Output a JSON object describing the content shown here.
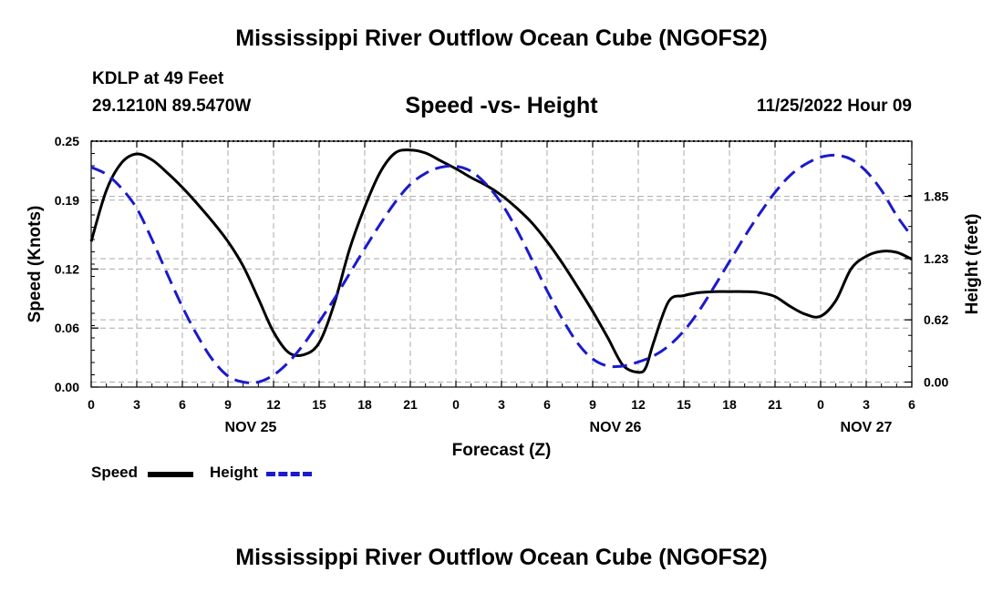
{
  "page": {
    "title": "Mississippi River Outflow Ocean Cube (NGOFS2)",
    "footer_title": "Mississippi River Outflow Ocean Cube (NGOFS2)"
  },
  "station": {
    "name": "KDLP at 49 Feet",
    "coords": "29.1210N  89.5470W",
    "datetime": "11/25/2022 Hour 09"
  },
  "chart_data": {
    "type": "line",
    "title": "Speed -vs- Height",
    "xlabel": "Forecast (Z)",
    "ylabel": "Speed (Knots)",
    "y2label": "Height (feet)",
    "x_unit": "hours from 00Z Nov 25",
    "xlim": [
      0,
      54
    ],
    "ylim": [
      0,
      0.25
    ],
    "y2lim": [
      -0.05,
      2.4
    ],
    "x_ticks": [
      0,
      3,
      6,
      9,
      12,
      15,
      18,
      21,
      24,
      27,
      30,
      33,
      36,
      39,
      42,
      45,
      48,
      51,
      54
    ],
    "x_tick_labels": [
      "0",
      "3",
      "6",
      "9",
      "12",
      "15",
      "18",
      "21",
      "0",
      "3",
      "6",
      "9",
      "12",
      "15",
      "18",
      "21",
      "0",
      "3",
      "6"
    ],
    "y_ticks": [
      0.0,
      0.06,
      0.12,
      0.19,
      0.25
    ],
    "y_tick_labels": [
      "0.00",
      "0.06",
      "0.12",
      "0.19",
      "0.25"
    ],
    "y2_ticks": [
      0.0,
      0.62,
      1.23,
      1.85
    ],
    "y2_tick_labels": [
      "0.00",
      "0.62",
      "1.23",
      "1.85"
    ],
    "day_labels": [
      {
        "x": 10.5,
        "label": "NOV 25"
      },
      {
        "x": 34.5,
        "label": "NOV 26"
      },
      {
        "x": 51,
        "label": "NOV 27"
      }
    ],
    "grid": true,
    "series": [
      {
        "name": "Speed",
        "axis": "left",
        "color": "#000000",
        "style": "solid",
        "x": [
          0,
          1,
          2,
          3,
          4,
          5,
          6,
          7,
          8,
          9,
          10,
          11,
          12,
          13,
          14,
          15,
          16,
          17,
          18,
          19,
          20,
          21,
          22,
          23,
          24,
          25,
          26,
          27,
          28,
          29,
          30,
          31,
          32,
          33,
          34,
          35,
          36,
          36.5,
          37,
          38,
          39,
          40,
          41,
          42,
          43,
          44,
          45,
          46,
          47,
          48,
          49,
          50,
          51,
          52,
          53,
          54
        ],
        "values": [
          0.148,
          0.2,
          0.228,
          0.237,
          0.231,
          0.218,
          0.203,
          0.186,
          0.168,
          0.148,
          0.123,
          0.09,
          0.056,
          0.035,
          0.033,
          0.045,
          0.085,
          0.14,
          0.183,
          0.218,
          0.238,
          0.241,
          0.238,
          0.23,
          0.222,
          0.213,
          0.205,
          0.195,
          0.182,
          0.167,
          0.148,
          0.126,
          0.102,
          0.077,
          0.05,
          0.022,
          0.015,
          0.02,
          0.045,
          0.087,
          0.093,
          0.096,
          0.097,
          0.097,
          0.097,
          0.096,
          0.092,
          0.082,
          0.074,
          0.072,
          0.088,
          0.12,
          0.133,
          0.138,
          0.137,
          0.13
        ]
      },
      {
        "name": "Height",
        "axis": "right",
        "color": "#1a1acc",
        "style": "dashed",
        "x": [
          0,
          1,
          2,
          3,
          4,
          5,
          6,
          7,
          8,
          9,
          10,
          11,
          12,
          13,
          14,
          15,
          16,
          17,
          18,
          19,
          20,
          21,
          22,
          23,
          24,
          25,
          26,
          27,
          28,
          29,
          30,
          31,
          32,
          33,
          34,
          35,
          36,
          37,
          38,
          39,
          40,
          41,
          42,
          43,
          44,
          45,
          46,
          47,
          48,
          49,
          50,
          51,
          52,
          53,
          54
        ],
        "values": [
          2.14,
          2.07,
          1.93,
          1.73,
          1.42,
          1.08,
          0.75,
          0.46,
          0.22,
          0.06,
          0.0,
          0.0,
          0.07,
          0.2,
          0.38,
          0.6,
          0.83,
          1.08,
          1.33,
          1.57,
          1.79,
          1.97,
          2.08,
          2.14,
          2.15,
          2.1,
          1.97,
          1.78,
          1.52,
          1.22,
          0.91,
          0.63,
          0.39,
          0.23,
          0.16,
          0.16,
          0.2,
          0.26,
          0.36,
          0.51,
          0.71,
          0.95,
          1.2,
          1.45,
          1.68,
          1.89,
          2.06,
          2.17,
          2.24,
          2.26,
          2.22,
          2.1,
          1.91,
          1.66,
          1.45
        ]
      }
    ],
    "legend": [
      {
        "label": "Speed",
        "color": "#000000",
        "style": "solid"
      },
      {
        "label": "Height",
        "color": "#1a1acc",
        "style": "dashed"
      }
    ]
  }
}
